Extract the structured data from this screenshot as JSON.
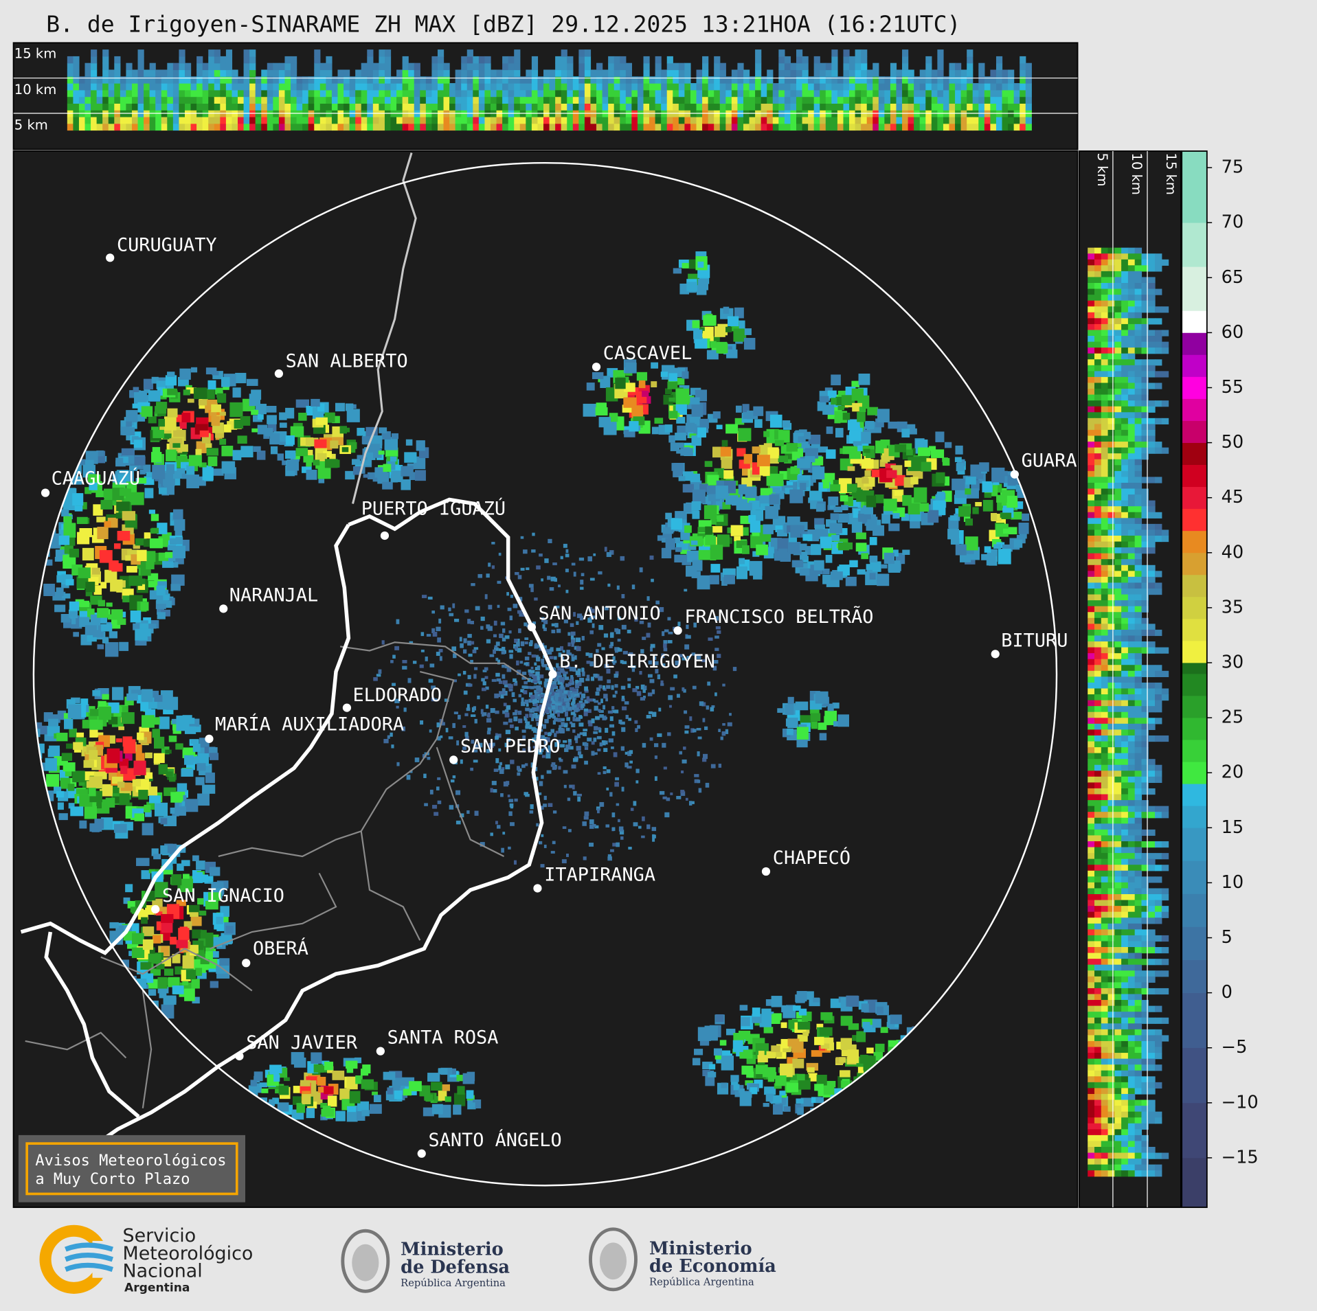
{
  "title": "B. de Irigoyen-SINARAME ZH MAX [dBZ] 29.12.2025 13:21HOA (16:21UTC)",
  "top_panel": {
    "labels": [
      "15 km",
      "10 km",
      "5 km"
    ]
  },
  "side_panel": {
    "labels": [
      "5 km",
      "10 km",
      "15 km"
    ]
  },
  "cities": [
    "CURUGUATY",
    "SAN ALBERTO",
    "CAAGUAZÚ",
    "PUERTO IGUAZÚ",
    "NARANJAL",
    "CASCAVEL",
    "SAN ANTONIO",
    "FRANCISCO BELTRÃO",
    "GUARA",
    "B. DE IRIGOYEN",
    "BITURU",
    "ELDORADO",
    "MARÍA AUXILIADORA",
    "SAN PEDRO",
    "CHAPECÓ",
    "ITAPIRANGA",
    "SAN IGNACIO",
    "OBERÁ",
    "SAN JAVIER",
    "SANTA ROSA",
    "SANTO ÁNGELO"
  ],
  "colorbar": {
    "ticks": [
      75,
      70,
      65,
      60,
      55,
      50,
      45,
      40,
      35,
      30,
      25,
      20,
      15,
      10,
      5,
      0,
      {
        "value": -5,
        "label": "−5"
      },
      {
        "value": -10,
        "label": "−10"
      },
      {
        "value": -15,
        "label": "−15"
      }
    ],
    "bounds": [
      -19.5,
      -15,
      -10,
      -5,
      0,
      3,
      6,
      9,
      12,
      15,
      17,
      19,
      21,
      23,
      25,
      27,
      29,
      30,
      32,
      34,
      36,
      38,
      40,
      42,
      44,
      46,
      48,
      50,
      52,
      54,
      56,
      58,
      60,
      62,
      66,
      70,
      76.5
    ],
    "colors": [
      "#3b3f68",
      "#3f4775",
      "#405283",
      "#405e90",
      "#3f699a",
      "#3d74a4",
      "#3b80ae",
      "#3a8cb8",
      "#3898c2",
      "#33a6ce",
      "#2fb8e0",
      "#40e840",
      "#38d038",
      "#30b830",
      "#2aa02a",
      "#228822",
      "#1c701c",
      "#f0f040",
      "#e0e040",
      "#d0d040",
      "#c8c040",
      "#d8a030",
      "#e88a20",
      "#ff3030",
      "#e81838",
      "#d00020",
      "#a00010",
      "#c8006a",
      "#e000a0",
      "#ff00e0",
      "#c000c8",
      "#9000a0",
      "#ffffff",
      "#d8f0e0",
      "#b0e8d0",
      "#88dcc0"
    ]
  },
  "notice": [
    "Avisos Meteorológicos",
    "a Muy Corto Plazo"
  ],
  "logos": {
    "smn": [
      "Servicio",
      "Meteorológico",
      "Nacional",
      "Argentina"
    ],
    "defensa": [
      "Ministerio",
      "de Defensa",
      "República Argentina"
    ],
    "economia": [
      "Ministerio",
      "de Economía",
      "República Argentina"
    ]
  }
}
